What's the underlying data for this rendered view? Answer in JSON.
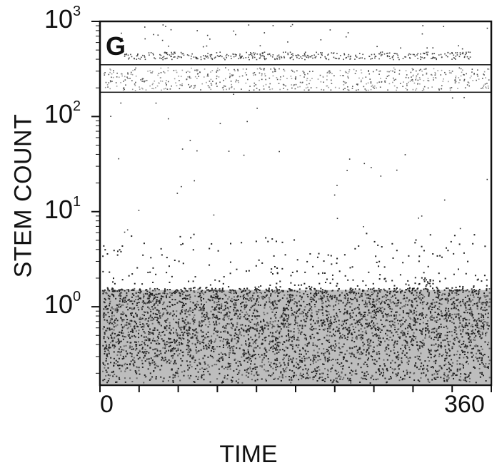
{
  "chart_data": {
    "type": "scatter",
    "panel_label": "G",
    "xlabel": "TIME",
    "ylabel": "STEM COUNT",
    "xlim": [
      0,
      360
    ],
    "ylim": [
      0.15,
      1000
    ],
    "y_scale": "log",
    "x_tick_labels": [
      "0",
      "360"
    ],
    "y_tick_labels": [
      {
        "base": "10",
        "exp": "3"
      },
      {
        "base": "10",
        "exp": "2"
      },
      {
        "base": "10",
        "exp": "1"
      },
      {
        "base": "10",
        "exp": "0"
      }
    ],
    "gate_box": {
      "y_low": 180,
      "y_high": 350,
      "x_low": 0,
      "x_high": 360
    },
    "populations": [
      {
        "label": "",
        "description_in_data_units": "dense low band",
        "y_range": [
          0.15,
          1.5
        ],
        "x_range": [
          0,
          360
        ]
      },
      {
        "label": "",
        "description_in_data_units": "gated band",
        "y_range": [
          180,
          350
        ],
        "x_range": [
          0,
          360
        ]
      },
      {
        "label": "",
        "description_in_data_units": "upper sparse band",
        "y_range": [
          380,
          600
        ],
        "x_range": [
          0,
          360
        ]
      }
    ],
    "grid": false
  }
}
